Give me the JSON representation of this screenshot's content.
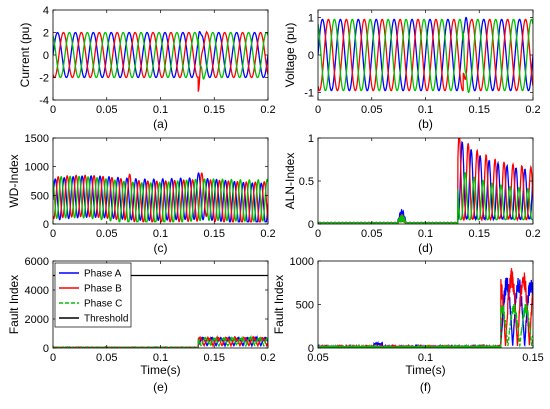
{
  "colors": {
    "phase_a": "#0000ff",
    "phase_b": "#ff0000",
    "phase_c": "#00c000",
    "threshold": "#000000"
  },
  "chart_data": [
    {
      "id": "a",
      "caption": "(a)",
      "type": "line",
      "signal": "sine",
      "xlabel": "",
      "ylabel": "Current (pu)",
      "xlim": [
        0,
        0.2
      ],
      "ylim": [
        -4,
        4
      ],
      "xticks": [
        0,
        0.05,
        0.1,
        0.15,
        0.2
      ],
      "xtick_labels": [
        "0",
        "0.05",
        "0.1",
        "0.15",
        "0.2"
      ],
      "yticks": [
        -4,
        -2,
        0,
        2,
        4
      ],
      "ytick_labels": [
        "-4",
        "-2",
        "0",
        "2",
        "4"
      ],
      "frequency_hz": 60,
      "amplitude": 2,
      "fault_time": 0.135,
      "fault_peak": -3.1,
      "series": [
        {
          "color": "#0000ff"
        },
        {
          "color": "#ff0000"
        },
        {
          "color": "#00c000"
        }
      ]
    },
    {
      "id": "b",
      "caption": "(b)",
      "type": "line",
      "signal": "sine",
      "xlabel": "",
      "ylabel": "Voltage (pu)",
      "xlim": [
        0,
        0.2
      ],
      "ylim": [
        -1.2,
        1.2
      ],
      "xticks": [
        0,
        0.05,
        0.1,
        0.15,
        0.2
      ],
      "xtick_labels": [
        "0",
        "0.05",
        "0.1",
        "0.15",
        "0.2"
      ],
      "yticks": [
        -1,
        0,
        1
      ],
      "ytick_labels": [
        "-1",
        "0",
        "1"
      ],
      "frequency_hz": 60,
      "amplitude": 0.95,
      "fault_time": 0.135,
      "fault_peak": 1.1,
      "series": [
        {
          "color": "#0000ff"
        },
        {
          "color": "#ff0000"
        },
        {
          "color": "#00c000"
        }
      ]
    },
    {
      "id": "c",
      "caption": "(c)",
      "type": "line",
      "signal": "wd",
      "xlabel": "",
      "ylabel": "WD-Index",
      "xlim": [
        0,
        0.2
      ],
      "ylim": [
        0,
        1500
      ],
      "xticks": [
        0,
        0.05,
        0.1,
        0.15,
        0.2
      ],
      "xtick_labels": [
        "0",
        "0.05",
        "0.1",
        "0.15",
        "0.2"
      ],
      "yticks": [
        0,
        500,
        1000,
        1500
      ],
      "ytick_labels": [
        "0",
        "500",
        "1000",
        "1500"
      ],
      "base_level": 420,
      "amplitude": 360,
      "peak_value": 960,
      "series": [
        {
          "color": "#0000ff"
        },
        {
          "color": "#ff0000"
        },
        {
          "color": "#00c000"
        }
      ]
    },
    {
      "id": "d",
      "caption": "(d)",
      "type": "line",
      "signal": "aln",
      "xlabel": "",
      "ylabel": "ALN-Index",
      "xlim": [
        0,
        0.2
      ],
      "ylim": [
        0,
        1
      ],
      "xticks": [
        0,
        0.05,
        0.1,
        0.15,
        0.2
      ],
      "xtick_labels": [
        "0",
        "0.05",
        "0.1",
        "0.15",
        "0.2"
      ],
      "yticks": [
        0,
        0.5,
        1
      ],
      "ytick_labels": [
        "0",
        "0.5",
        "1"
      ],
      "fault_time": 0.13,
      "pre_fault_bump": {
        "x": 0.078,
        "value": 0.15
      },
      "series": [
        {
          "color": "#0000ff"
        },
        {
          "color": "#ff0000"
        },
        {
          "color": "#00c000"
        }
      ]
    },
    {
      "id": "e",
      "caption": "(e)",
      "type": "line",
      "signal": "fault_e",
      "xlabel": "Time(s)",
      "ylabel": "Fault Index",
      "xlim": [
        0,
        0.2
      ],
      "ylim": [
        0,
        6000
      ],
      "xticks": [
        0,
        0.05,
        0.1,
        0.15,
        0.2
      ],
      "xtick_labels": [
        "0",
        "0.05",
        "0.1",
        "0.15",
        "0.2"
      ],
      "yticks": [
        0,
        2000,
        4000,
        6000
      ],
      "ytick_labels": [
        "0",
        "2000",
        "4000",
        "6000"
      ],
      "fault_time": 0.135,
      "post_fault_peak": 800,
      "threshold": 5000,
      "legend": {
        "position": "top-left",
        "entries": [
          "Phase A",
          "Phase B",
          "Phase C",
          "Threshold"
        ]
      },
      "series": [
        {
          "name": "Phase A",
          "color": "#0000ff",
          "style": "solid"
        },
        {
          "name": "Phase B",
          "color": "#ff0000",
          "style": "solid"
        },
        {
          "name": "Phase C",
          "color": "#00c000",
          "style": "dashed"
        },
        {
          "name": "Threshold",
          "color": "#000000",
          "style": "solid"
        }
      ]
    },
    {
      "id": "f",
      "caption": "(f)",
      "type": "line",
      "signal": "fault_f",
      "xlabel": "Time(s)",
      "ylabel": "Fault Index",
      "xlim": [
        0.05,
        0.15
      ],
      "ylim": [
        0,
        1000
      ],
      "xticks": [
        0.05,
        0.1,
        0.15
      ],
      "xtick_labels": [
        "0.05",
        "0.1",
        "0.15"
      ],
      "yticks": [
        0,
        500,
        1000
      ],
      "ytick_labels": [
        "0",
        "500",
        "1000"
      ],
      "fault_time": 0.135,
      "post_fault_peak": 900,
      "series": [
        {
          "color": "#0000ff",
          "style": "solid"
        },
        {
          "color": "#ff0000",
          "style": "solid"
        },
        {
          "color": "#00c000",
          "style": "dashed"
        }
      ]
    }
  ]
}
